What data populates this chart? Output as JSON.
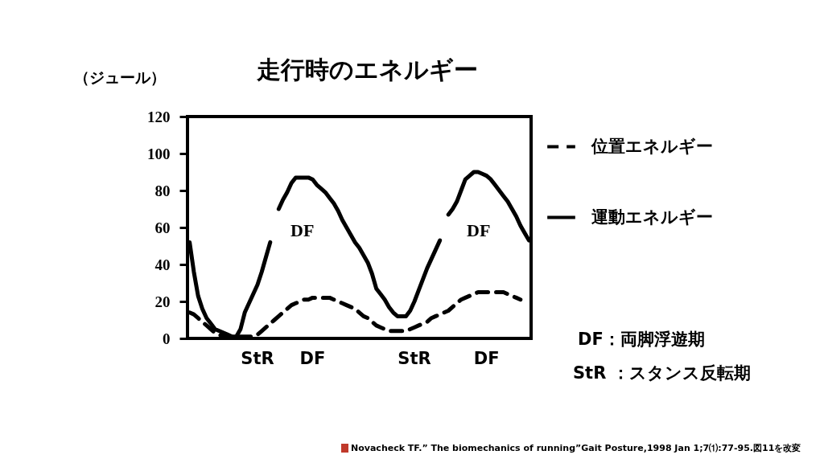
{
  "chart_data": {
    "type": "line",
    "title": "走行時のエネルギー",
    "ylabel": "（ジュール）",
    "categories": [
      null,
      null,
      null,
      null,
      null,
      null,
      null,
      null,
      null,
      null,
      null,
      null,
      null,
      null,
      null,
      null,
      "StR",
      null,
      null,
      null,
      null,
      null,
      null,
      null,
      null,
      null,
      null,
      null,
      null,
      "DF",
      null,
      null,
      null,
      null,
      null,
      null,
      null,
      null,
      null,
      null,
      null,
      null,
      null,
      null,
      null,
      null,
      null,
      null,
      null,
      null,
      null,
      null,
      null,
      "StR",
      null,
      null,
      null,
      null,
      null,
      null,
      null,
      null,
      null,
      null,
      null,
      null,
      null,
      null,
      null,
      null,
      "DF",
      null,
      null,
      null,
      null,
      null,
      null,
      null,
      null,
      null,
      null
    ],
    "series": [
      {
        "name": "位置エネルギー",
        "color": "#000000",
        "line_style": "dashed",
        "values": [
          14,
          13,
          11,
          9,
          7,
          5,
          3,
          2,
          1,
          1,
          1,
          1,
          1,
          1,
          1,
          1,
          2,
          4,
          6,
          8,
          10,
          12,
          14,
          16,
          18,
          19,
          20,
          21,
          21,
          22,
          22,
          22,
          22,
          22,
          21,
          20,
          19,
          18,
          17,
          16,
          14,
          12,
          11,
          9,
          7,
          6,
          5,
          4,
          4,
          4,
          4,
          4,
          5,
          6,
          7,
          8,
          9,
          11,
          12,
          13,
          14,
          15,
          17,
          19,
          21,
          22,
          23,
          24,
          25,
          25,
          25,
          25,
          25,
          25,
          25,
          24,
          23,
          22,
          21,
          null,
          null
        ]
      },
      {
        "name": "運動エネルギー",
        "color": "#000000",
        "line_style": "solid",
        "values": [
          52,
          36,
          23,
          16,
          11,
          8,
          5,
          4,
          3,
          2,
          1,
          1,
          5,
          14,
          19,
          24,
          29,
          36,
          44,
          52,
          null,
          70,
          75,
          79,
          84,
          87,
          87,
          87,
          87,
          86,
          83,
          81,
          79,
          76,
          73,
          69,
          64,
          60,
          56,
          52,
          49,
          45,
          41,
          35,
          27,
          24,
          21,
          17,
          14,
          12,
          12,
          12,
          15,
          20,
          26,
          32,
          38,
          43,
          48,
          53,
          null,
          67,
          70,
          74,
          80,
          86,
          88,
          90,
          90,
          89,
          88,
          86,
          83,
          80,
          77,
          74,
          70,
          66,
          61,
          57,
          53
        ]
      }
    ],
    "ylim": [
      0,
      120
    ],
    "yticks": [
      0,
      20,
      40,
      60,
      80,
      100,
      120
    ],
    "grid": false,
    "legend": "right",
    "annotations": [
      "DF",
      "DF",
      "DF：両脚浮遊期",
      "StR ：スタンス反転期",
      "Novacheck TF.” The biomechanics of running”Gait Posture,1998 Jan 1;7⑴:77-95.図11を改変"
    ]
  }
}
